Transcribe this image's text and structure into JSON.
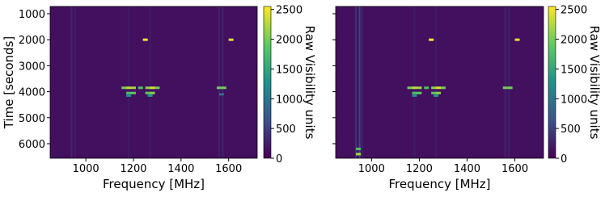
{
  "chart_data": [
    {
      "type": "heatmap",
      "xlabel": "Frequency [MHz]",
      "ylabel": "Time [seconds]",
      "show_yticklabels": true,
      "xlim": [
        850,
        1720
      ],
      "ylim": [
        6560,
        720
      ],
      "xticks": [
        1000,
        1200,
        1400,
        1600
      ],
      "yticks": [
        1000,
        2000,
        3000,
        4000,
        5000,
        6000
      ],
      "background": 120,
      "streaks": {
        "x": [
          940,
          955,
          1180,
          1270,
          1560,
          1575
        ],
        "values": [
          350,
          250,
          220,
          220,
          300,
          300
        ]
      },
      "points": {
        "x": [
          1250,
          1610,
          1160,
          1180,
          1200,
          1230,
          1260,
          1280,
          1300,
          1180,
          1200,
          1260,
          1280,
          1560,
          1580,
          1180,
          1270,
          1570
        ],
        "y": [
          2000,
          2000,
          3850,
          3850,
          3850,
          3850,
          3850,
          3850,
          3850,
          4050,
          4050,
          4050,
          4050,
          3850,
          3850,
          4150,
          4150,
          4100
        ],
        "values": [
          2500,
          2400,
          2000,
          2300,
          2200,
          1800,
          2100,
          2400,
          2000,
          1800,
          1900,
          1900,
          2100,
          2000,
          2000,
          1200,
          1300,
          900
        ]
      },
      "clim": [
        0,
        2550
      ],
      "cbar_label": "Raw Visibility units",
      "cbar_ticks": [
        0,
        500,
        1000,
        1500,
        2000,
        2500
      ]
    },
    {
      "type": "heatmap",
      "xlabel": "Frequency [MHz]",
      "show_yticklabels": false,
      "xlim": [
        850,
        1720
      ],
      "ylim": [
        6560,
        720
      ],
      "xticks": [
        1000,
        1200,
        1400,
        1600
      ],
      "yticks": [
        1000,
        2000,
        3000,
        4000,
        5000,
        6000
      ],
      "background": 120,
      "streaks": {
        "x": [
          935,
          950,
          960,
          1180,
          1270,
          1560,
          1575
        ],
        "values": [
          500,
          700,
          350,
          220,
          220,
          300,
          300
        ]
      },
      "points": {
        "x": [
          1250,
          1610,
          1160,
          1180,
          1200,
          1230,
          1260,
          1280,
          1300,
          1180,
          1200,
          1260,
          1280,
          1560,
          1580,
          945,
          945,
          1180,
          1270
        ],
        "y": [
          2000,
          2000,
          3850,
          3850,
          3850,
          3850,
          3850,
          3850,
          3850,
          4050,
          4050,
          4050,
          4050,
          3850,
          3850,
          6200,
          6400,
          4150,
          4150
        ],
        "values": [
          2500,
          2400,
          2000,
          2300,
          2200,
          1800,
          2100,
          2400,
          2000,
          1800,
          1900,
          1900,
          2100,
          2000,
          2000,
          1800,
          2200,
          1200,
          1300
        ]
      },
      "clim": [
        0,
        2550
      ],
      "cbar_label": "Raw Visibility units",
      "cbar_ticks": [
        0,
        500,
        1000,
        1500,
        2000,
        2500
      ]
    }
  ]
}
